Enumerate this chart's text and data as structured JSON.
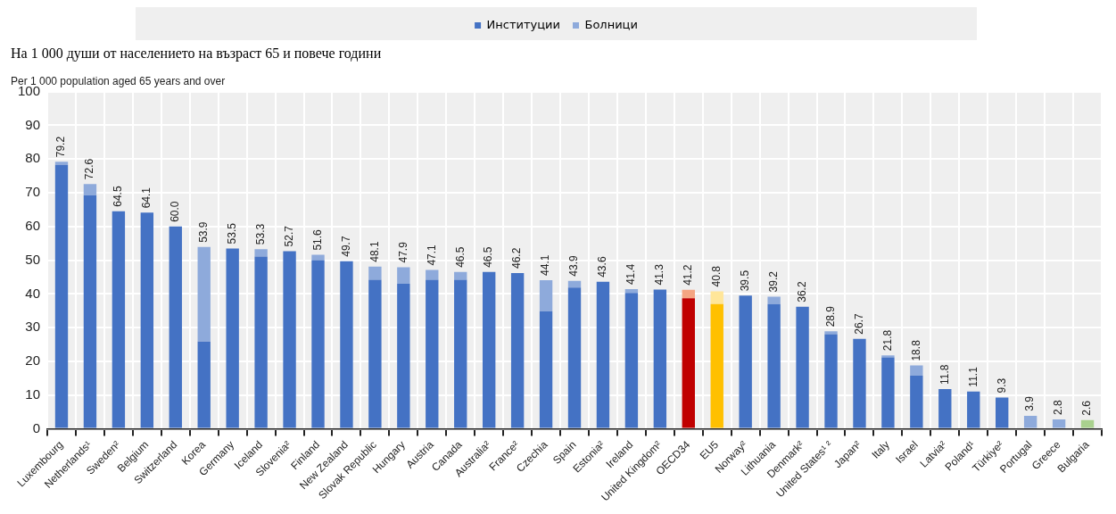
{
  "chart_data": {
    "type": "bar",
    "stacked": true,
    "title": "На 1 000 души от населението на възраст 65 и повече години",
    "ylabel": "Per 1 000 population aged 65 years and over",
    "categories": [
      "Luxembourg",
      "Netherlands¹",
      "Sweden²",
      "Belgium",
      "Switzerland",
      "Korea",
      "Germany",
      "Iceland",
      "Slovenia²",
      "Finland",
      "New Zealand",
      "Slovak Republic",
      "Hungary",
      "Austria",
      "Canada",
      "Australia²",
      "France²",
      "Czechia",
      "Spain",
      "Estonia²",
      "Ireland",
      "United Kingdom²",
      "OECD34",
      "EU5",
      "Norway²",
      "Lithuania",
      "Denmark²",
      "United States¹ ²",
      "Japan²",
      "Italy",
      "Israel",
      "Latvia²",
      "Poland¹",
      "Türkiye²",
      "Portugal",
      "Greece",
      "Bulgaria"
    ],
    "series": [
      {
        "name": "Институции",
        "color": "#4472c4",
        "colors": [
          "#4472c4",
          "#4472c4",
          "#4472c4",
          "#4472c4",
          "#4472c4",
          "#4472c4",
          "#4472c4",
          "#4472c4",
          "#4472c4",
          "#4472c4",
          "#4472c4",
          "#4472c4",
          "#4472c4",
          "#4472c4",
          "#4472c4",
          "#4472c4",
          "#4472c4",
          "#4472c4",
          "#4472c4",
          "#4472c4",
          "#4472c4",
          "#4472c4",
          "#c00000",
          "#ffc000",
          "#4472c4",
          "#4472c4",
          "#4472c4",
          "#4472c4",
          "#4472c4",
          "#4472c4",
          "#4472c4",
          "#4472c4",
          "#4472c4",
          "#4472c4",
          "#4472c4",
          "#4472c4",
          "#4472c4"
        ],
        "values": [
          78.3,
          69.2,
          64.5,
          64.1,
          60.0,
          25.9,
          53.5,
          51.1,
          52.7,
          50.0,
          49.7,
          44.2,
          43.0,
          44.2,
          44.2,
          46.5,
          46.2,
          34.9,
          41.9,
          43.6,
          40.3,
          41.3,
          38.7,
          37.0,
          39.5,
          37.0,
          36.2,
          28.1,
          26.7,
          21.2,
          15.8,
          11.8,
          11.1,
          9.3,
          0,
          0,
          0
        ]
      },
      {
        "name": "Болници",
        "color": "#8eaadb",
        "colors": [
          "#8eaadb",
          "#8eaadb",
          "#8eaadb",
          "#8eaadb",
          "#8eaadb",
          "#8eaadb",
          "#8eaadb",
          "#8eaadb",
          "#8eaadb",
          "#8eaadb",
          "#8eaadb",
          "#8eaadb",
          "#8eaadb",
          "#8eaadb",
          "#8eaadb",
          "#8eaadb",
          "#8eaadb",
          "#8eaadb",
          "#8eaadb",
          "#8eaadb",
          "#8eaadb",
          "#8eaadb",
          "#f4a582",
          "#ffe699",
          "#8eaadb",
          "#8eaadb",
          "#8eaadb",
          "#8eaadb",
          "#8eaadb",
          "#8eaadb",
          "#8eaadb",
          "#8eaadb",
          "#8eaadb",
          "#8eaadb",
          "#8eaadb",
          "#8eaadb",
          "#a9d18e"
        ],
        "values": [
          0.9,
          3.4,
          0,
          0,
          0,
          28.0,
          0,
          2.2,
          0,
          1.6,
          0,
          3.9,
          4.9,
          2.9,
          2.3,
          0,
          0,
          9.2,
          2.0,
          0,
          1.1,
          0,
          2.5,
          3.8,
          0,
          2.2,
          0,
          0.8,
          0,
          0.6,
          3.0,
          0,
          0,
          0,
          3.9,
          2.8,
          2.6
        ]
      }
    ],
    "totals": [
      "79.2",
      "72.6",
      "64.5",
      "64.1",
      "60.0",
      "53.9",
      "53.5",
      "53.3",
      "52.7",
      "51.6",
      "49.7",
      "48.1",
      "47.9",
      "47.1",
      "46.5",
      "46.5",
      "46.2",
      "44.1",
      "43.9",
      "43.6",
      "41.4",
      "41.3",
      "41.2",
      "40.8",
      "39.5",
      "39.2",
      "36.2",
      "28.9",
      "26.7",
      "21.8",
      "18.8",
      "11.8",
      "11.1",
      "9.3",
      "3.9",
      "2.8",
      "2.6"
    ],
    "ylim": [
      0,
      100
    ],
    "yticks": [
      0,
      10,
      20,
      30,
      40,
      50,
      60,
      70,
      80,
      90,
      100
    ],
    "grid": true,
    "legend": "top"
  }
}
